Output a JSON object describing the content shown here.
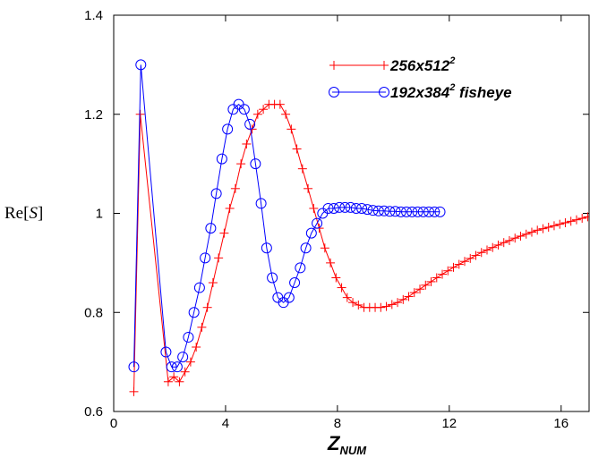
{
  "chart_data": {
    "type": "line",
    "xlabel_main": "Z",
    "xlabel_sub": "NUM",
    "ylabel_pre": "Re[",
    "ylabel_sym": "S",
    "ylabel_post": "]",
    "xlim": [
      0,
      17
    ],
    "ylim": [
      0.6,
      1.4
    ],
    "xticks": [
      0,
      4,
      8,
      12,
      16
    ],
    "xtick_labels": [
      "0",
      "4",
      "8",
      "12",
      "16"
    ],
    "yticks": [
      0.6,
      0.8,
      1.0,
      1.2,
      1.4
    ],
    "ytick_labels": [
      "0.6",
      "0.8",
      "1",
      "1.2",
      "1.4"
    ],
    "grid": false,
    "legend_position": "top-right",
    "series": [
      {
        "name": "256x512",
        "name_sup": "2",
        "color": "#ff0000",
        "marker": "plus",
        "x": [
          0.72,
          0.95,
          1.95,
          2.15,
          2.35,
          2.55,
          2.75,
          2.95,
          3.15,
          3.35,
          3.55,
          3.75,
          3.95,
          4.15,
          4.35,
          4.55,
          4.75,
          4.95,
          5.15,
          5.35,
          5.55,
          5.75,
          5.95,
          6.15,
          6.35,
          6.55,
          6.75,
          6.95,
          7.15,
          7.35,
          7.55,
          7.75,
          7.95,
          8.15,
          8.35,
          8.55,
          8.75,
          8.95,
          9.15,
          9.35,
          9.55,
          9.75,
          9.95,
          10.15,
          10.35,
          10.55,
          10.75,
          10.95,
          11.15,
          11.35,
          11.55,
          11.75,
          11.95,
          12.15,
          12.35,
          12.55,
          12.75,
          12.95,
          13.15,
          13.35,
          13.55,
          13.75,
          13.95,
          14.15,
          14.35,
          14.55,
          14.75,
          14.95,
          15.15,
          15.35,
          15.55,
          15.75,
          15.95,
          16.15,
          16.35,
          16.55,
          16.75,
          16.95
        ],
        "y": [
          0.64,
          1.2,
          0.66,
          0.67,
          0.66,
          0.68,
          0.7,
          0.73,
          0.77,
          0.81,
          0.86,
          0.91,
          0.96,
          1.01,
          1.05,
          1.1,
          1.14,
          1.17,
          1.2,
          1.21,
          1.22,
          1.22,
          1.22,
          1.2,
          1.17,
          1.13,
          1.09,
          1.05,
          1.01,
          0.97,
          0.93,
          0.9,
          0.87,
          0.85,
          0.83,
          0.82,
          0.815,
          0.81,
          0.81,
          0.81,
          0.81,
          0.812,
          0.816,
          0.82,
          0.826,
          0.832,
          0.84,
          0.847,
          0.855,
          0.862,
          0.87,
          0.877,
          0.884,
          0.891,
          0.897,
          0.903,
          0.909,
          0.915,
          0.921,
          0.926,
          0.931,
          0.936,
          0.941,
          0.945,
          0.95,
          0.954,
          0.958,
          0.962,
          0.966,
          0.969,
          0.972,
          0.975,
          0.978,
          0.981,
          0.984,
          0.987,
          0.99,
          0.993
        ]
      },
      {
        "name": "192x384",
        "name_sup": "2",
        "name_suffix": " fisheye",
        "color": "#0000ff",
        "marker": "circle",
        "x": [
          0.72,
          0.97,
          1.87,
          2.07,
          2.27,
          2.47,
          2.67,
          2.87,
          3.07,
          3.27,
          3.47,
          3.67,
          3.87,
          4.07,
          4.27,
          4.47,
          4.67,
          4.87,
          5.07,
          5.27,
          5.47,
          5.67,
          5.87,
          6.07,
          6.27,
          6.47,
          6.67,
          6.87,
          7.07,
          7.27,
          7.47,
          7.67,
          7.87,
          8.07,
          8.27,
          8.47,
          8.67,
          8.87,
          9.07,
          9.27,
          9.47,
          9.67,
          9.87,
          10.07,
          10.27,
          10.47,
          10.67,
          10.87,
          11.07,
          11.27,
          11.47,
          11.67
        ],
        "y": [
          0.69,
          1.3,
          0.72,
          0.69,
          0.69,
          0.71,
          0.75,
          0.8,
          0.85,
          0.91,
          0.97,
          1.04,
          1.11,
          1.17,
          1.21,
          1.22,
          1.21,
          1.18,
          1.1,
          1.02,
          0.93,
          0.87,
          0.83,
          0.82,
          0.83,
          0.86,
          0.89,
          0.93,
          0.96,
          0.98,
          1.0,
          1.01,
          1.01,
          1.012,
          1.012,
          1.012,
          1.01,
          1.01,
          1.008,
          1.006,
          1.005,
          1.005,
          1.004,
          1.004,
          1.003,
          1.003,
          1.003,
          1.003,
          1.003,
          1.003,
          1.003,
          1.003
        ]
      }
    ]
  }
}
